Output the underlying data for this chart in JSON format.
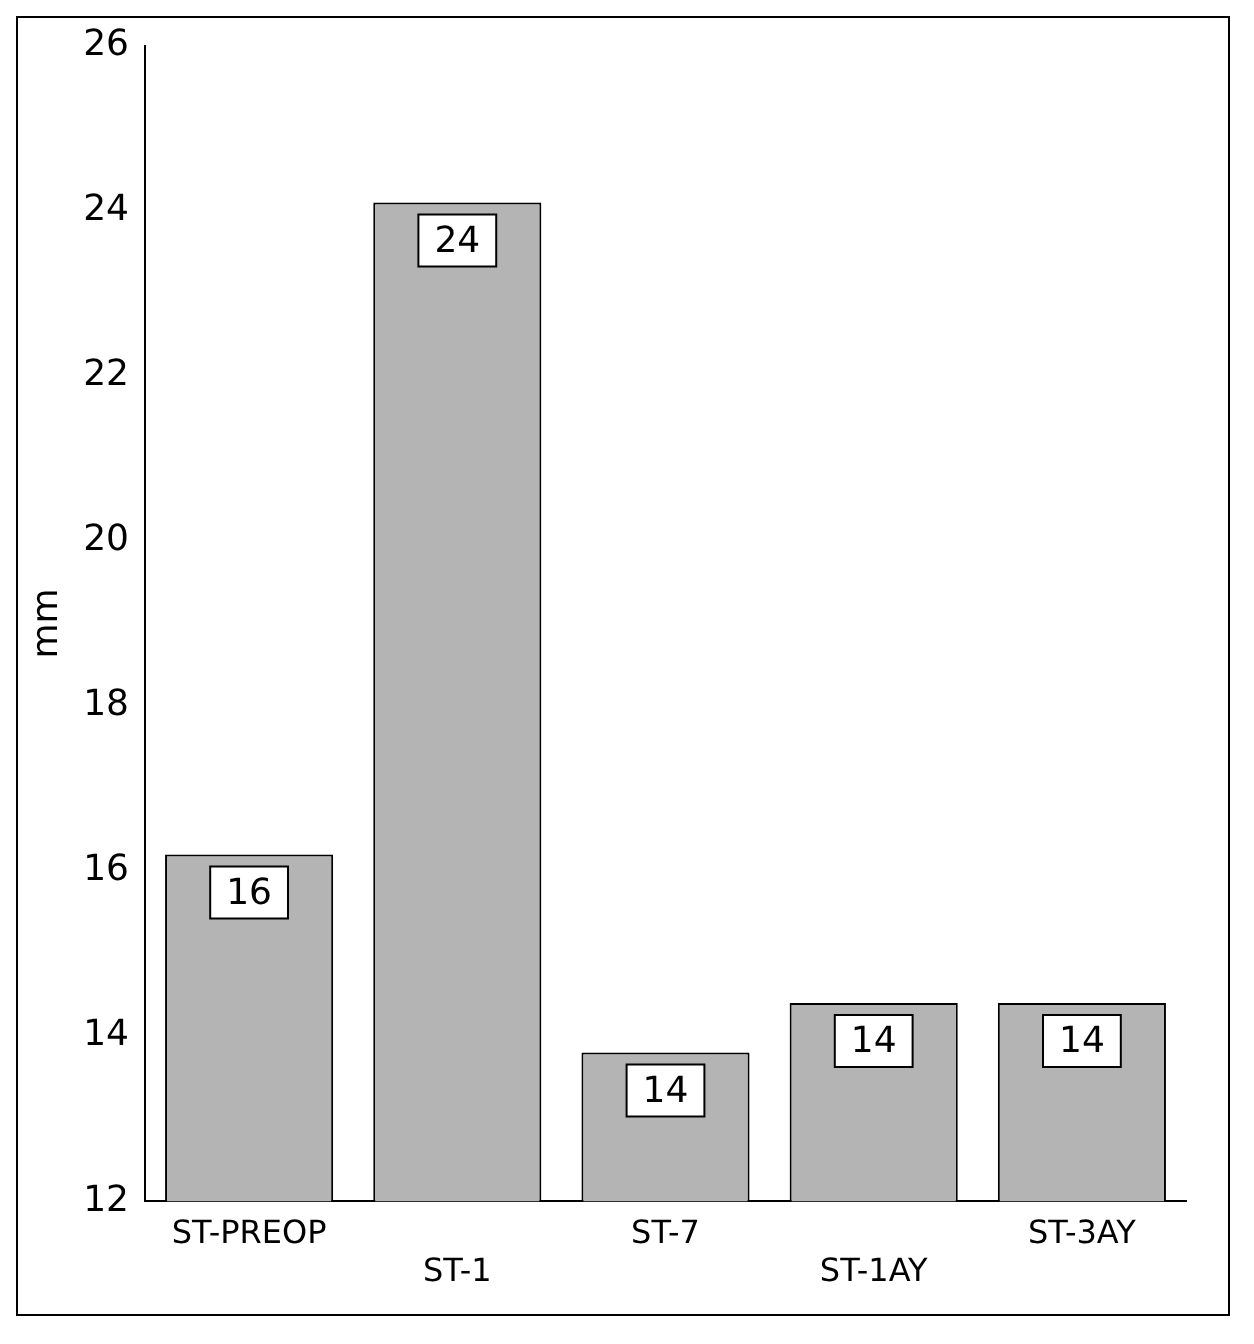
{
  "chart_data": {
    "type": "bar",
    "ylabel": "mm",
    "categories": [
      "ST-PREOP",
      "ST-1",
      "ST-7",
      "ST-1AY",
      "ST-3AY"
    ],
    "values": [
      16.2,
      24.1,
      13.8,
      14.4,
      14.4
    ],
    "value_labels": [
      "16",
      "24",
      "14",
      "14",
      "14"
    ],
    "color": "#b4b4b4",
    "ylim": [
      12,
      26
    ],
    "yticks": [
      12,
      14,
      16,
      18,
      20,
      22,
      24,
      26
    ],
    "grid": false,
    "legend": false
  }
}
